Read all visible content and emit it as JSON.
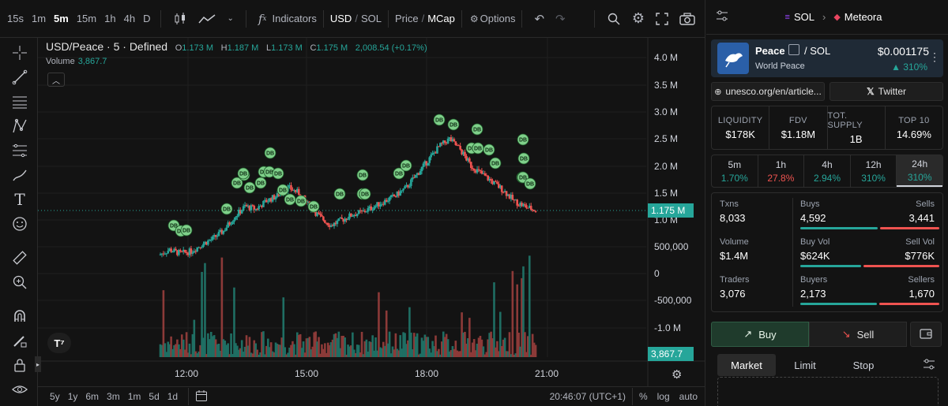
{
  "toolbar": {
    "timeframes": [
      "15s",
      "1m",
      "5m",
      "15m",
      "1h",
      "4h",
      "D"
    ],
    "active_timeframe": "5m",
    "indicators_label": "Indicators",
    "currency_usd": "USD",
    "currency_sol": "SOL",
    "price_label": "Price",
    "mcap_label": "MCap",
    "options_label": "Options",
    "slash": "/"
  },
  "chart": {
    "symbol_title": "USD/Peace · 5 · Defined",
    "ohlc": {
      "o_label": "O",
      "o": "1.173 M",
      "h_label": "H",
      "h": "1.187 M",
      "l_label": "L",
      "l": "1.173 M",
      "c_label": "C",
      "c": "1.175 M",
      "change": "2,008.54 (+0.17%)"
    },
    "volume_label": "Volume",
    "volume_value": "3,867.7",
    "y_ticks": [
      "4.0 M",
      "3.5 M",
      "3.0 M",
      "2.5 M",
      "2.0 M",
      "1.5 M",
      "1.0 M",
      "500,000",
      "0",
      "-500,000",
      "-1.0 M"
    ],
    "price_tag": "1.175 M",
    "volume_tag": "3,867.7",
    "x_ticks": [
      "12:00",
      "15:00",
      "18:00",
      "21:00"
    ],
    "marker_label": "DB",
    "colors": {
      "up": "#26a69a",
      "down": "#ef5350",
      "marker": "#7fd08a"
    }
  },
  "chart_data": {
    "type": "candlestick",
    "x_ticks": [
      "12:00",
      "15:00",
      "18:00",
      "21:00"
    ],
    "ylim": [
      -1300000,
      4200000
    ],
    "close_series_approx": [
      0.35,
      0.45,
      0.38,
      0.42,
      0.55,
      0.65,
      0.8,
      1.05,
      1.25,
      1.2,
      1.35,
      1.45,
      1.6,
      1.5,
      1.25,
      1.05,
      0.9,
      1.0,
      1.1,
      1.15,
      1.25,
      1.35,
      1.45,
      1.6,
      1.85,
      2.1,
      2.35,
      2.5,
      2.3,
      2.0,
      1.85,
      1.7,
      1.55,
      1.35,
      1.25,
      1.175
    ],
    "close_unit": "M (approx)",
    "last_price": 1175000,
    "last_volume": 3867.7
  },
  "bottom_bar": {
    "ranges": [
      "5y",
      "1y",
      "6m",
      "3m",
      "1m",
      "5d",
      "1d"
    ],
    "clock": "20:46:07 (UTC+1)",
    "percent": "%",
    "log": "log",
    "auto": "auto"
  },
  "right_panel": {
    "header": {
      "chain": "SOL",
      "dex": "Meteora"
    },
    "token": {
      "name": "Peace",
      "quote": "/ SOL",
      "full_name": "World Peace",
      "price": "$0.001175",
      "change": "▲ 310%"
    },
    "links": {
      "website": "unesco.org/en/article...",
      "twitter": "Twitter"
    },
    "stats": [
      {
        "label": "LIQUIDITY",
        "value": "$178K"
      },
      {
        "label": "FDV",
        "value": "$1.18M"
      },
      {
        "label": "TOT. SUPPLY",
        "value": "1B"
      },
      {
        "label": "TOP 10",
        "value": "14.69%"
      }
    ],
    "periods": [
      {
        "label": "5m",
        "value": "1.70%",
        "dir": "up"
      },
      {
        "label": "1h",
        "value": "27.8%",
        "dir": "down"
      },
      {
        "label": "4h",
        "value": "2.94%",
        "dir": "up"
      },
      {
        "label": "12h",
        "value": "310%",
        "dir": "up"
      },
      {
        "label": "24h",
        "value": "310%",
        "dir": "up"
      }
    ],
    "txns": {
      "txns_label": "Txns",
      "txns": "8,033",
      "volume_label": "Volume",
      "volume": "$1.4M",
      "traders_label": "Traders",
      "traders": "3,076",
      "buys_label": "Buys",
      "buys": "4,592",
      "sells_label": "Sells",
      "sells": "3,441",
      "buyvol_label": "Buy Vol",
      "buyvol": "$624K",
      "sellvol_label": "Sell Vol",
      "sellvol": "$776K",
      "buyers_label": "Buyers",
      "buyers": "2,173",
      "sellers_label": "Sellers",
      "sellers": "1,670"
    },
    "actions": {
      "buy": "Buy",
      "sell": "Sell"
    },
    "order_tabs": [
      "Market",
      "Limit",
      "Stop"
    ]
  }
}
